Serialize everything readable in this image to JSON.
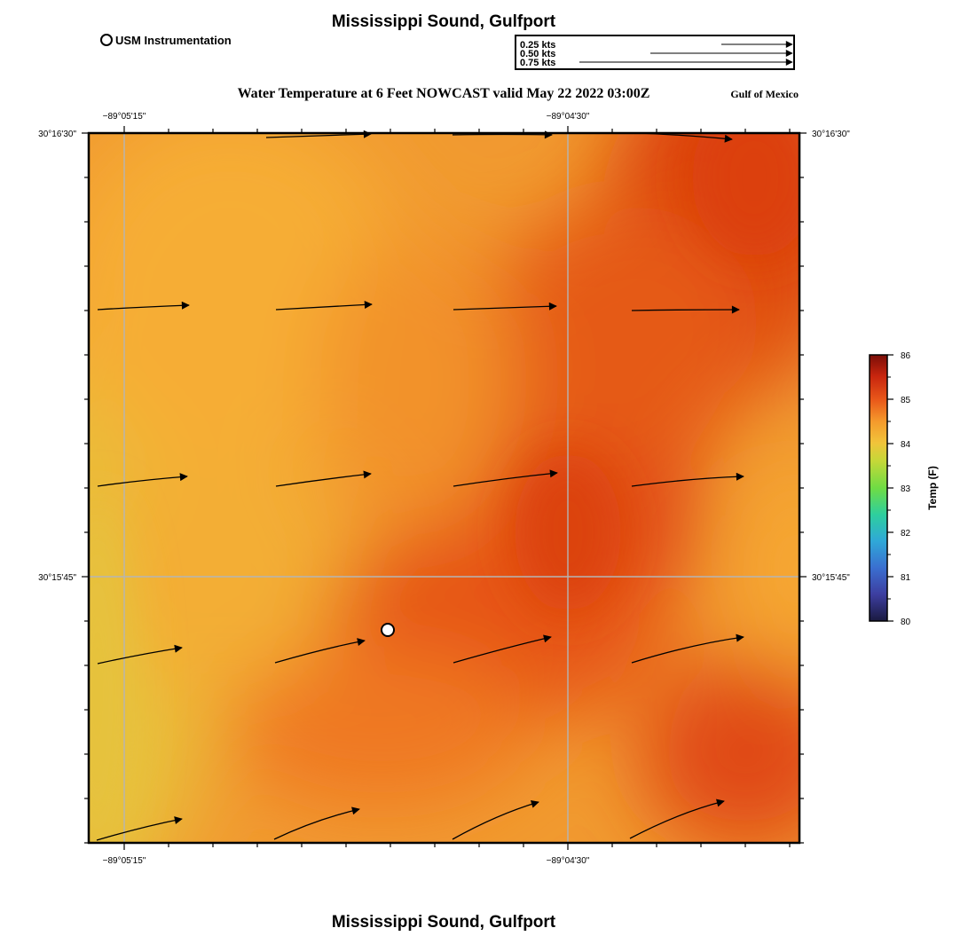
{
  "header": {
    "title": "Mississippi Sound, Gulfport",
    "legend_station_label": "USM Instrumentation",
    "speed_legend": [
      {
        "label": "0.25 kts",
        "speed": 0.25
      },
      {
        "label": "0.50 kts",
        "speed": 0.5
      },
      {
        "label": "0.75 kts",
        "speed": 0.75
      }
    ]
  },
  "map": {
    "subtitle": "Water Temperature at 6 Feet NOWCAST valid May 22 2022 03:00Z",
    "region_label": "Gulf of Mexico",
    "lon_ticks": [
      "−89°05'15\"",
      "−89°04'30\""
    ],
    "lat_ticks": [
      "30°16'30\"",
      "30°15'45\""
    ],
    "station_marker": {
      "name": "USM Instrumentation"
    }
  },
  "colorbar": {
    "label": "Temp (F)",
    "ticks": [
      "86",
      "85",
      "84",
      "83",
      "82",
      "81",
      "80"
    ],
    "min": 80,
    "max": 86
  },
  "footer": {
    "title": "Mississippi Sound, Gulfport"
  },
  "colors": {
    "hot": "#dc4210",
    "warm": "#ef7824",
    "mild": "#f6a733",
    "cool": "#e8c03a",
    "arrow": "#000000",
    "grid": "#b5b5b5"
  }
}
